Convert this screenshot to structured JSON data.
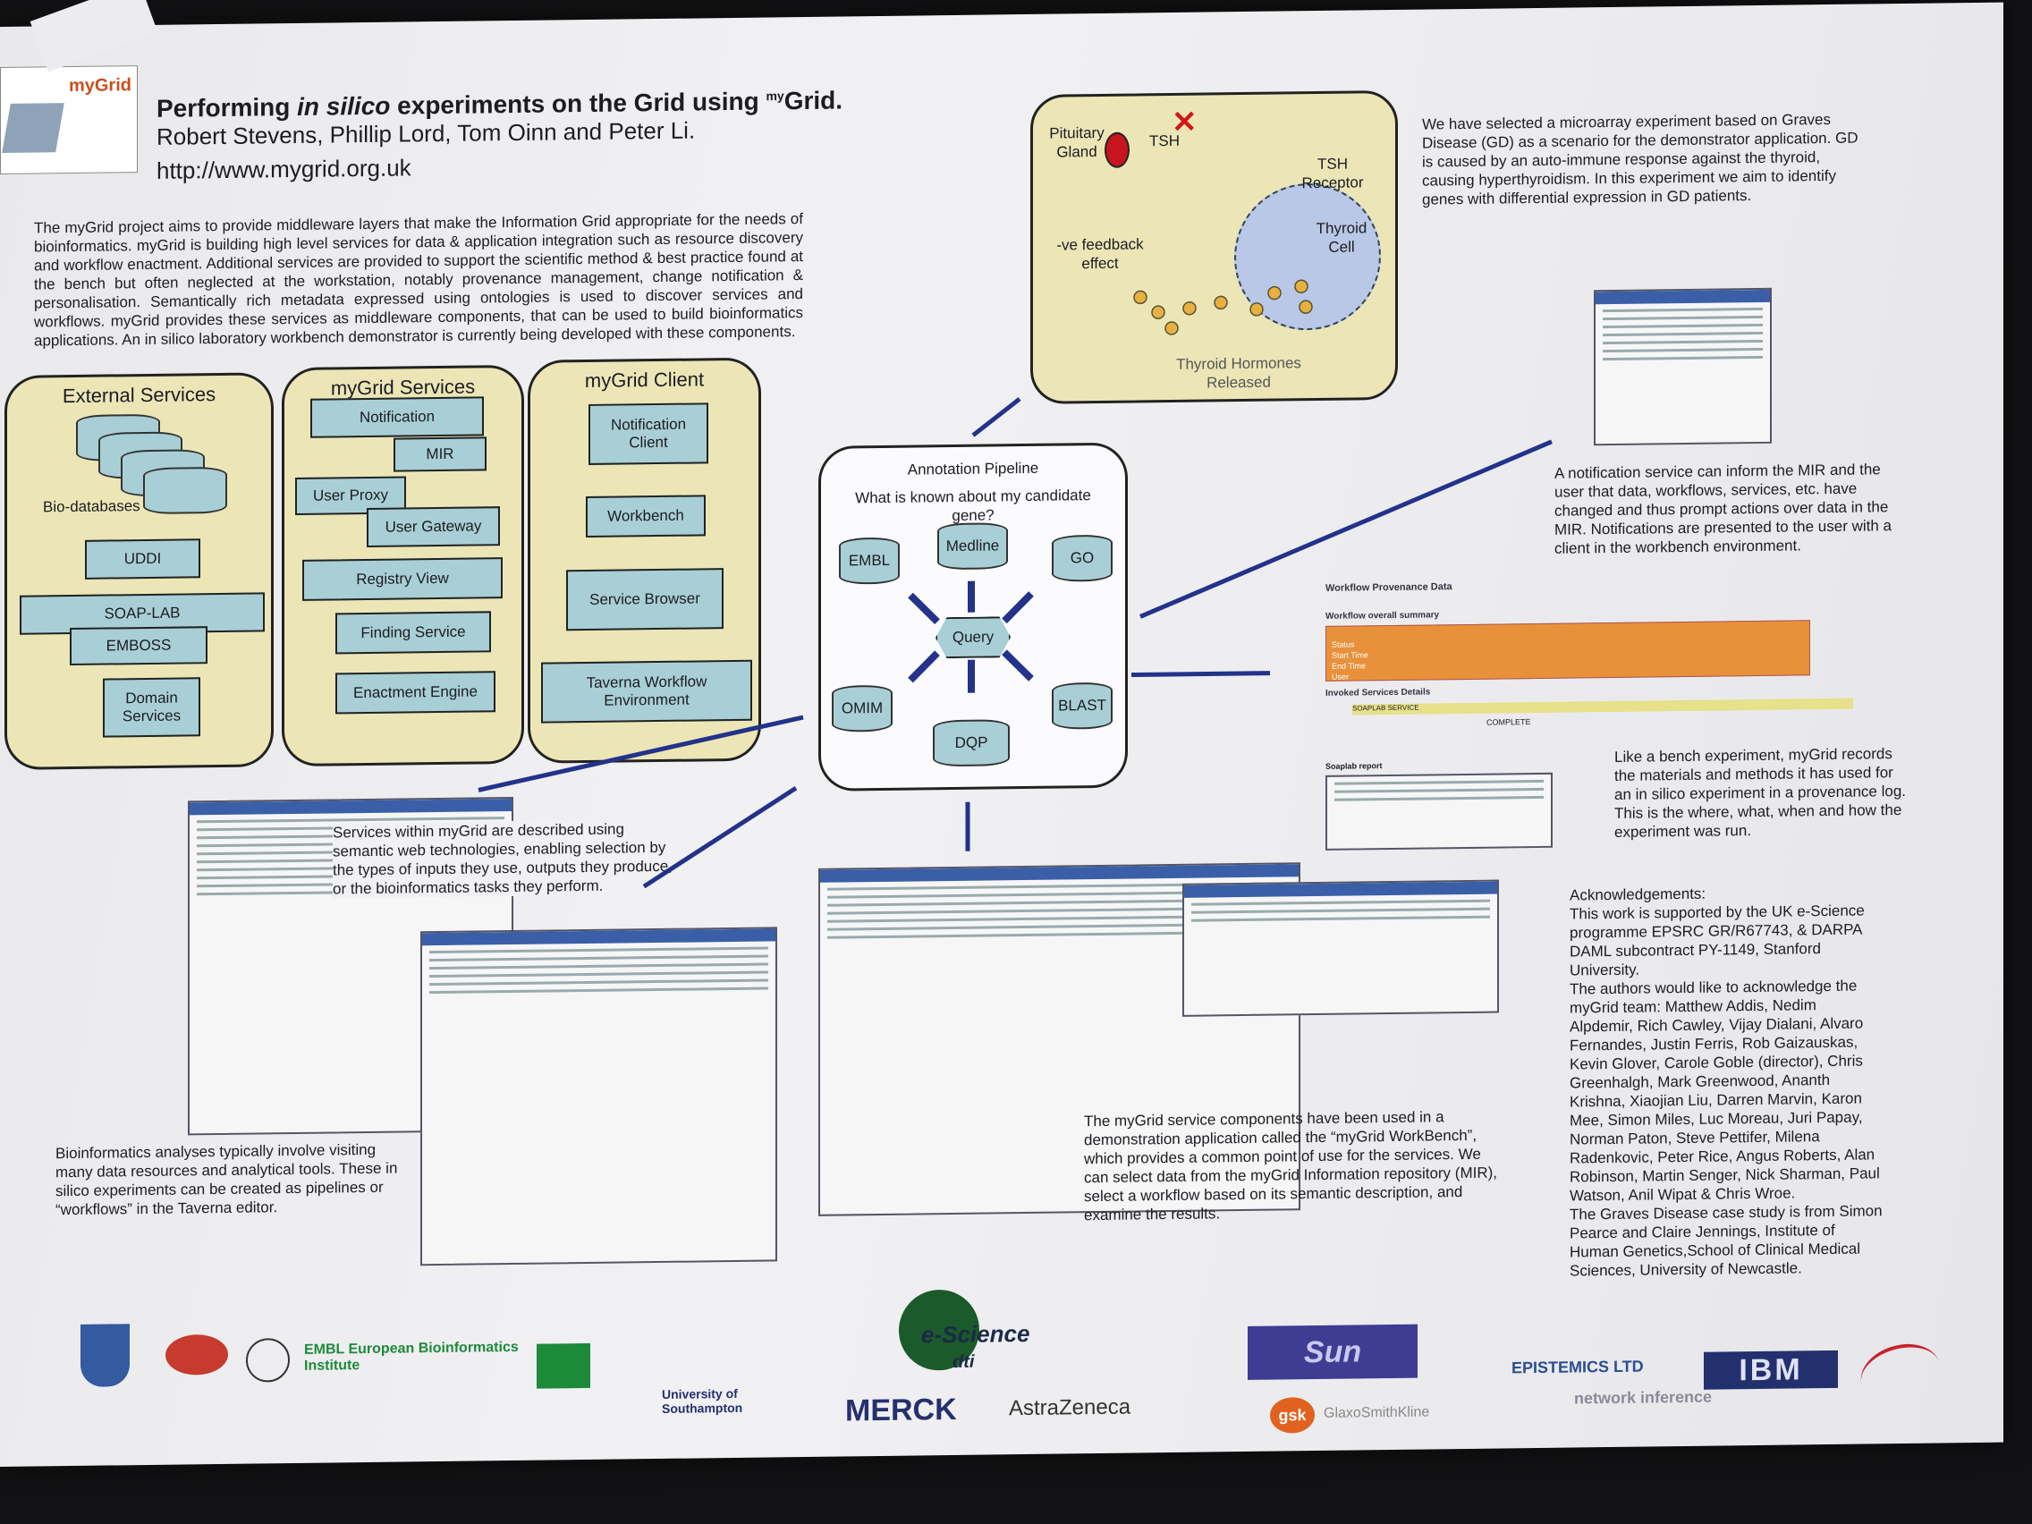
{
  "header": {
    "logo_text": "myGrid",
    "title_a": "Performing ",
    "title_b": "in silico",
    "title_c": " experiments on the Grid using ",
    "title_sup": "my",
    "title_d": "Grid.",
    "authors": "Robert Stevens, Phillip Lord, Tom Oinn and Peter Li.",
    "url": "http://www.mygrid.org.uk"
  },
  "intro": "The myGrid project aims to provide middleware layers that make the Information Grid appropriate for the needs of bioinformatics. myGrid is building high level services for data & application integration such as resource discovery and workflow enactment. Additional services are provided to support the scientific method & best practice found at the bench but often neglected at the workstation, notably provenance management, change notification & personalisation. Semantically rich metadata expressed using ontologies is used to discover services and workflows. myGrid provides these services as middleware components, that can be used to build bioinformatics applications. An in silico laboratory workbench demonstrator is currently being developed with these components.",
  "arch": {
    "external_title": "External Services",
    "services_title": "myGrid Services",
    "client_title": "myGrid Client",
    "biodb": "Bio-databases",
    "uddi": "UDDI",
    "soaplab": "SOAP-LAB",
    "emboss": "EMBOSS",
    "domain": "Domain Services",
    "notification": "Notification",
    "mir": "MIR",
    "user_proxy": "User Proxy",
    "user_gateway": "User Gateway",
    "registry": "Registry View",
    "finding": "Finding Service",
    "enactment": "Enactment Engine",
    "notif_client": "Notification Client",
    "workbench": "Workbench",
    "service_browser": "Service Browser",
    "taverna": "Taverna Workflow Environment"
  },
  "thyroid": {
    "pituitary": "Pituitary Gland",
    "tsh": "TSH",
    "receptor": "TSH Receptor",
    "cell": "Thyroid Cell",
    "feedback": "-ve feedback effect",
    "hormones": "Thyroid Hormones Released"
  },
  "graves_text": "We have selected a microarray experiment based on Graves Disease (GD) as a scenario for the demonstrator application. GD is caused by an auto-immune response against the thyroid, causing hyperthyroidism. In this experiment we aim to identify genes with differential expression in GD patients.",
  "pipeline": {
    "title": "Annotation Pipeline",
    "question": "What is known about my candidate gene?",
    "embl": "EMBL",
    "medline": "Medline",
    "go": "GO",
    "query": "Query",
    "omim": "OMIM",
    "blast": "BLAST",
    "dqp": "DQP"
  },
  "notify_text": "A notification service can inform the MIR and the user that data, workflows, services, etc. have changed and thus prompt actions over data in the MIR. Notifications are presented to the user with a client in the workbench environment.",
  "provenance": {
    "title": "Workflow Provenance Data",
    "summary": "Workflow overall summary",
    "invoked": "Invoked Services Details",
    "soaplab": "SOAPLAB SERVICE",
    "report": "Soaplab report",
    "rows": [
      "Status",
      "Start Time",
      "End Time",
      "User"
    ],
    "status_value": "COMPLETE"
  },
  "bench_text": "Like a bench experiment, myGrid records the materials and methods it has used for an in silico experiment in a provenance log. This is the where, what, when and how the experiment was run.",
  "semantic_text": "Services within myGrid are described using semantic web technologies, enabling selection by the types of inputs they use, outputs they produce, or the bioinformatics tasks they perform.",
  "bioinf_text": "Bioinformatics analyses typically involve visiting many data resources and analytical tools. These in silico experiments can be created as pipelines or “workflows” in the Taverna editor.",
  "workbench_text": "The myGrid service components have been used in a demonstration application called the “myGrid WorkBench”, which provides a common point of use for the services. We can select data from the myGrid Information repository (MIR), select a workflow based on its semantic description, and examine the results.",
  "ack": {
    "heading": "Acknowledgements:",
    "p1": "This work is supported by the UK e-Science programme EPSRC GR/R67743, & DARPA DAML subcontract PY-1149, Stanford University.",
    "p2": "The authors would like to acknowledge the myGrid team: Matthew Addis, Nedim Alpdemir, Rich Cawley, Vijay Dialani, Alvaro Fernandes, Justin Ferris, Rob Gaizauskas, Kevin Glover, Carole Goble (director), Chris Greenhalgh, Mark Greenwood, Ananth Krishna, Xiaojian Liu, Darren Marvin, Karon Mee, Simon Miles, Luc Moreau, Juri Papay, Norman Paton, Steve Pettifer, Milena Radenkovic, Peter Rice, Angus Roberts, Alan Robinson, Martin Senger, Nick Sharman, Paul Watson, Anil Wipat & Chris Wroe.",
    "p3": "The Graves Disease case study is from Simon Pearce and Claire Jennings, Institute of Human Genetics,School of Clinical Medical Sciences, University of Newcastle."
  },
  "logos": {
    "embl": "EMBL European Bioinformatics Institute",
    "southampton": "University of Southampton",
    "merck": "MERCK",
    "astrazeneca": "AstraZeneca",
    "escience": "e-Science",
    "dti": "dti",
    "sun": "Sun",
    "gsk": "gsk",
    "glaxo": "GlaxoSmithKline",
    "epistemics": "EPISTEMICS LTD",
    "ibm": "IBM",
    "network": "network inference"
  },
  "colors": {
    "panel": "#ece6b7",
    "box": "#a9cfd6",
    "arrow": "#23328a",
    "provenance_orange": "#e8913a",
    "gland_red": "#c8141e"
  }
}
